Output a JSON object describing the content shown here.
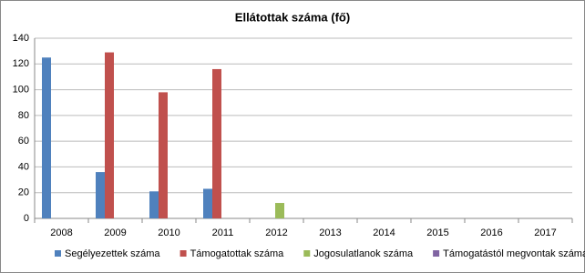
{
  "chart_data": {
    "type": "bar",
    "title": "Ellátottak száma (fő)",
    "categories": [
      "2008",
      "2009",
      "2010",
      "2011",
      "2012",
      "2013",
      "2014",
      "2015",
      "2016",
      "2017"
    ],
    "series": [
      {
        "name": "Segélyezettek száma",
        "color": "#4f81bd",
        "values": [
          125,
          36,
          21,
          23,
          null,
          null,
          null,
          null,
          null,
          null
        ]
      },
      {
        "name": "Támogatottak száma",
        "color": "#c0504d",
        "values": [
          null,
          129,
          98,
          116,
          null,
          null,
          null,
          null,
          null,
          null
        ]
      },
      {
        "name": "Jogosulatlanok száma",
        "color": "#9bbb59",
        "values": [
          null,
          null,
          null,
          null,
          12,
          null,
          null,
          null,
          null,
          null
        ]
      },
      {
        "name": "Támogatástól megvontak száma",
        "color": "#8064a2",
        "values": [
          null,
          null,
          null,
          null,
          null,
          null,
          null,
          null,
          null,
          null
        ]
      }
    ],
    "ylim": [
      0,
      140
    ],
    "yticks": [
      0,
      20,
      40,
      60,
      80,
      100,
      120,
      140
    ],
    "grid": true,
    "legend": "bottom"
  }
}
